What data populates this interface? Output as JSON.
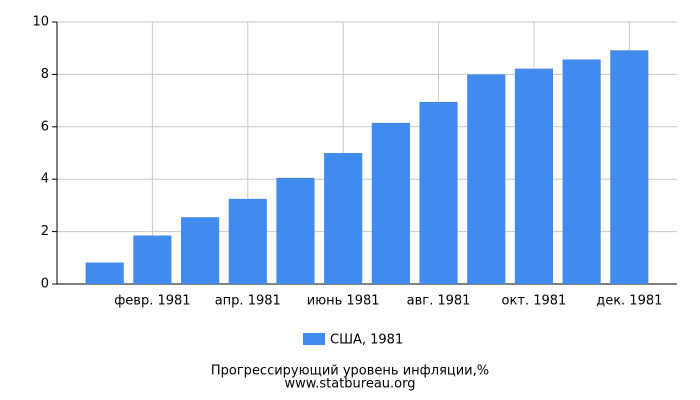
{
  "chart_data": {
    "type": "bar",
    "title": "Прогрессирующий уровень инфляции,%",
    "source": "www.statbureau.org",
    "categories": [
      null,
      "февр. 1981",
      null,
      "апр. 1981",
      null,
      "июнь 1981",
      null,
      "авг. 1981",
      null,
      "окт. 1981",
      null,
      "дек. 1981"
    ],
    "series": [
      {
        "name": "США, 1981",
        "color": "#428bee",
        "values": [
          0.82,
          1.85,
          2.55,
          3.25,
          4.05,
          5.0,
          6.15,
          6.95,
          8.0,
          8.22,
          8.57,
          8.92
        ]
      }
    ],
    "ylim": [
      0,
      10
    ],
    "yticks": [
      0,
      2,
      4,
      6,
      8,
      10
    ],
    "grid": true
  }
}
